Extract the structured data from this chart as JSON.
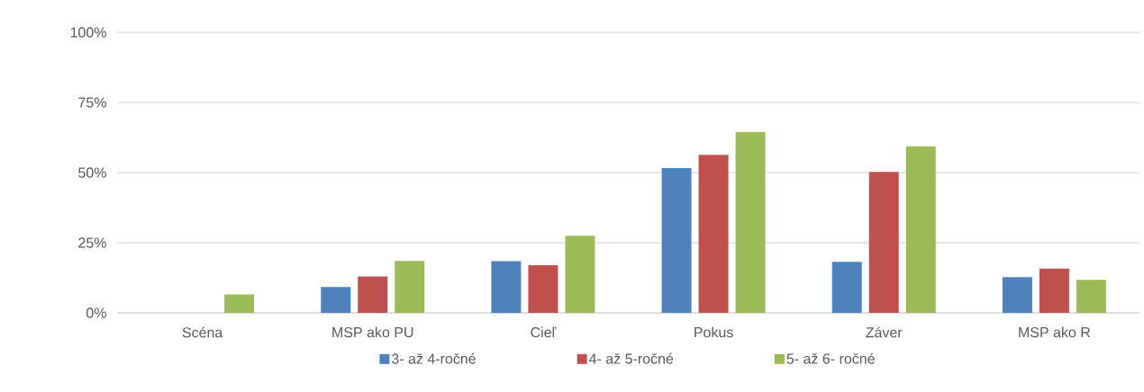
{
  "chart_data": {
    "type": "bar",
    "categories": [
      "Scéna",
      "MSP ako PU",
      "Cieľ",
      "Pokus",
      "Záver",
      "MSP ako R"
    ],
    "series": [
      {
        "name": "3- až 4-ročné",
        "color": "#4f81bd",
        "values": [
          0,
          9.2,
          18.4,
          51.6,
          18.2,
          12.7
        ]
      },
      {
        "name": "4- až 5-ročné",
        "color": "#c0504d",
        "values": [
          0,
          13.0,
          17.0,
          56.3,
          50.2,
          15.8
        ]
      },
      {
        "name": "5- až 6- ročné",
        "color": "#9bbb59",
        "values": [
          6.6,
          18.5,
          27.5,
          64.5,
          59.4,
          11.8
        ]
      }
    ],
    "ylim": [
      0,
      100
    ],
    "yticks": [
      {
        "value": 0,
        "label": "0%"
      },
      {
        "value": 25,
        "label": "25%"
      },
      {
        "value": 50,
        "label": "50%"
      },
      {
        "value": 75,
        "label": "75%"
      },
      {
        "value": 100,
        "label": "100%"
      }
    ],
    "grid": "y",
    "legend": "bottom"
  }
}
